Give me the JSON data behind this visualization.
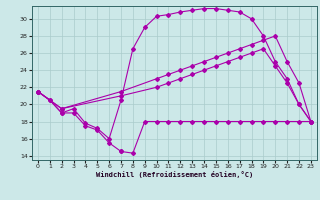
{
  "background_color": "#cce8e8",
  "line_color": "#aa00aa",
  "xlim": [
    -0.5,
    23.5
  ],
  "ylim": [
    13.5,
    31.5
  ],
  "yticks": [
    14,
    16,
    18,
    20,
    22,
    24,
    26,
    28,
    30
  ],
  "xticks": [
    0,
    1,
    2,
    3,
    4,
    5,
    6,
    7,
    8,
    9,
    10,
    11,
    12,
    13,
    14,
    15,
    16,
    17,
    18,
    19,
    20,
    21,
    22,
    23
  ],
  "xlabel": "Windchill (Refroidissement éolien,°C)",
  "series1_x": [
    0,
    1,
    2,
    3,
    4,
    5,
    6,
    7
  ],
  "series1_y": [
    21.5,
    20.5,
    19.0,
    19.0,
    17.5,
    17.0,
    15.5,
    14.5
  ],
  "series1b_x": [
    7,
    8,
    9,
    10,
    11,
    12,
    13,
    14,
    15,
    16,
    17,
    18,
    19,
    20,
    21,
    22,
    23
  ],
  "series1b_y": [
    14.5,
    14.3,
    18.0,
    18.0,
    18.0,
    18.0,
    18.0,
    18.0,
    18.0,
    18.0,
    18.0,
    18.0,
    18.0,
    18.0,
    18.0,
    18.0,
    18.0
  ],
  "series2_x": [
    0,
    1,
    2,
    3,
    4,
    5,
    6,
    7,
    8,
    9,
    10,
    11,
    12,
    13,
    14,
    15,
    16,
    17,
    18,
    19,
    20,
    21,
    22,
    23
  ],
  "series2_y": [
    21.5,
    20.5,
    19.0,
    19.5,
    17.8,
    17.2,
    16.0,
    20.5,
    26.5,
    29.0,
    30.3,
    30.5,
    30.8,
    31.0,
    31.2,
    31.2,
    31.0,
    30.8,
    30.0,
    28.0,
    25.0,
    23.0,
    20.0,
    18.0
  ],
  "series3_x": [
    0,
    2,
    7,
    10,
    11,
    12,
    13,
    14,
    15,
    16,
    17,
    18,
    19,
    20,
    21,
    22,
    23
  ],
  "series3_y": [
    21.5,
    19.5,
    21.5,
    23.0,
    23.5,
    24.0,
    24.5,
    25.0,
    25.5,
    26.0,
    26.5,
    27.0,
    27.5,
    28.0,
    25.0,
    22.5,
    18.0
  ],
  "series4_x": [
    0,
    2,
    7,
    10,
    11,
    12,
    13,
    14,
    15,
    16,
    17,
    18,
    19,
    20,
    21,
    22,
    23
  ],
  "series4_y": [
    21.5,
    19.5,
    21.0,
    22.0,
    22.5,
    23.0,
    23.5,
    24.0,
    24.5,
    25.0,
    25.5,
    26.0,
    26.5,
    24.5,
    22.5,
    20.0,
    18.0
  ]
}
